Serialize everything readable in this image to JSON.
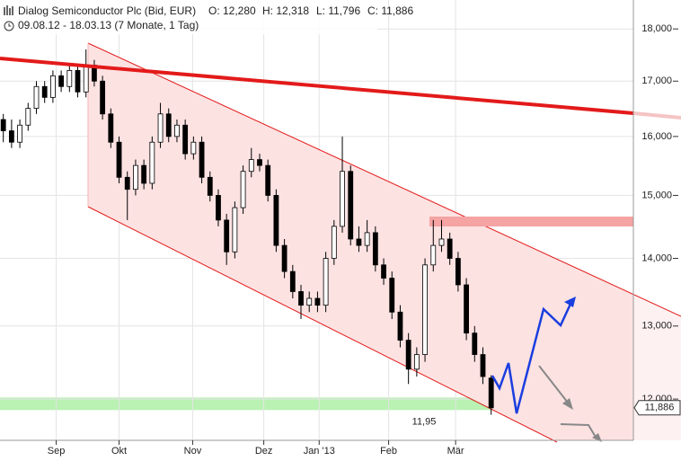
{
  "chart_data": {
    "type": "candlestick",
    "title": "Dialog Semiconductor Plc (Bid, EUR)",
    "ohlc_labels": [
      "O: 12,280",
      "H: 12,318",
      "L: 11,796",
      "C: 11,886"
    ],
    "subtitle": "09.08.12 - 18.03.13 (7 Monate, 1 Tag)",
    "log_scale": true,
    "grid": true,
    "categories": [
      null,
      null,
      null,
      null,
      null,
      null,
      null,
      null,
      null,
      null,
      null,
      null,
      null,
      null,
      null,
      null,
      null,
      null,
      null,
      null,
      null,
      null,
      null,
      null,
      null,
      null,
      null,
      null,
      null,
      null,
      null,
      null,
      null,
      null,
      null,
      null,
      null,
      null,
      null,
      null,
      null,
      null,
      null,
      null,
      null,
      null,
      null,
      null,
      null,
      null,
      null,
      null,
      null,
      null,
      null,
      null,
      null,
      null,
      null,
      null
    ],
    "series": [
      {
        "up_color": "#ffffff",
        "down_color": "#000000",
        "open": [
          16.3,
          16.1,
          15.9,
          16.2,
          16.5,
          16.9,
          16.7,
          17.1,
          16.9,
          17.2,
          16.8,
          17.3,
          17.0,
          16.4,
          15.9,
          15.3,
          15.1,
          15.5,
          15.2,
          15.9,
          16.4,
          16.0,
          16.2,
          15.7,
          15.9,
          15.3,
          15.0,
          14.6,
          14.1,
          14.8,
          15.4,
          15.6,
          15.5,
          15.0,
          14.2,
          13.8,
          13.5,
          13.3,
          13.4,
          13.3,
          14.0,
          14.5,
          15.4,
          14.3,
          14.2,
          14.4,
          13.9,
          13.7,
          13.2,
          12.8,
          12.4,
          12.6,
          13.9,
          14.2,
          14.3,
          14.0,
          13.6,
          12.9,
          12.6,
          12.28
        ],
        "high": [
          16.4,
          16.3,
          16.3,
          16.6,
          17.0,
          17.0,
          17.2,
          17.2,
          17.3,
          17.3,
          17.6,
          17.4,
          17.1,
          16.5,
          16.0,
          15.4,
          15.6,
          15.6,
          16.0,
          16.6,
          16.5,
          16.3,
          16.3,
          16.0,
          16.0,
          15.4,
          15.1,
          14.7,
          14.9,
          15.5,
          15.8,
          15.7,
          15.6,
          15.1,
          14.3,
          13.9,
          13.6,
          13.5,
          13.5,
          14.1,
          14.6,
          16.0,
          15.5,
          14.5,
          14.6,
          14.5,
          14.0,
          13.8,
          13.3,
          12.9,
          12.7,
          14.0,
          14.6,
          14.6,
          14.4,
          14.1,
          13.7,
          13.0,
          12.7,
          12.318
        ],
        "low": [
          15.9,
          15.8,
          15.8,
          16.1,
          16.4,
          16.6,
          16.6,
          16.8,
          16.8,
          16.7,
          16.7,
          16.9,
          16.3,
          15.8,
          15.2,
          14.6,
          15.0,
          15.1,
          15.1,
          15.8,
          15.9,
          15.9,
          15.6,
          15.6,
          15.2,
          14.9,
          14.5,
          13.9,
          14.0,
          14.7,
          15.3,
          15.4,
          14.9,
          14.1,
          13.7,
          13.4,
          13.1,
          13.2,
          13.2,
          13.2,
          13.9,
          14.4,
          14.2,
          14.1,
          14.1,
          13.8,
          13.6,
          13.1,
          12.7,
          12.2,
          12.3,
          12.5,
          13.8,
          14.1,
          13.9,
          13.5,
          12.8,
          12.5,
          12.2,
          11.796
        ],
        "close": [
          16.1,
          15.9,
          16.2,
          16.5,
          16.9,
          16.7,
          17.1,
          16.9,
          17.2,
          16.8,
          17.3,
          17.0,
          16.4,
          15.9,
          15.3,
          15.1,
          15.5,
          15.2,
          15.9,
          16.4,
          16.0,
          16.2,
          15.7,
          15.9,
          15.3,
          15.0,
          14.6,
          14.1,
          14.8,
          15.4,
          15.6,
          15.5,
          15.0,
          14.2,
          13.8,
          13.5,
          13.3,
          13.4,
          13.3,
          14.0,
          14.5,
          15.4,
          14.3,
          14.2,
          14.4,
          13.9,
          13.7,
          13.2,
          12.8,
          12.4,
          12.6,
          13.9,
          14.2,
          14.3,
          14.0,
          13.6,
          12.9,
          12.6,
          12.3,
          11.886
        ]
      }
    ],
    "xlim": [
      -0.4,
      76.2
    ],
    "xticks": [
      {
        "value": 6.4,
        "label": "Sep"
      },
      {
        "value": 14.0,
        "label": "Okt"
      },
      {
        "value": 22.9,
        "label": "Nov"
      },
      {
        "value": 31.5,
        "label": "Dez"
      },
      {
        "value": 38.2,
        "label": "Jan '13"
      },
      {
        "value": 46.6,
        "label": "Feb"
      },
      {
        "value": 54.7,
        "label": "Mär"
      }
    ],
    "ylim": [
      11.47,
      18.58
    ],
    "yticks": [
      {
        "value": 12,
        "label": "12,000"
      },
      {
        "value": 13,
        "label": "13,000"
      },
      {
        "value": 14,
        "label": "14,000"
      },
      {
        "value": 15,
        "label": "15,000"
      },
      {
        "value": 16,
        "label": "16,000"
      },
      {
        "value": 17,
        "label": "17,000"
      },
      {
        "value": 18,
        "label": "18,000"
      }
    ],
    "support": {
      "value": 11.95,
      "label": "11,95"
    },
    "last_price": {
      "value": 11.886,
      "label": "11,886"
    }
  }
}
